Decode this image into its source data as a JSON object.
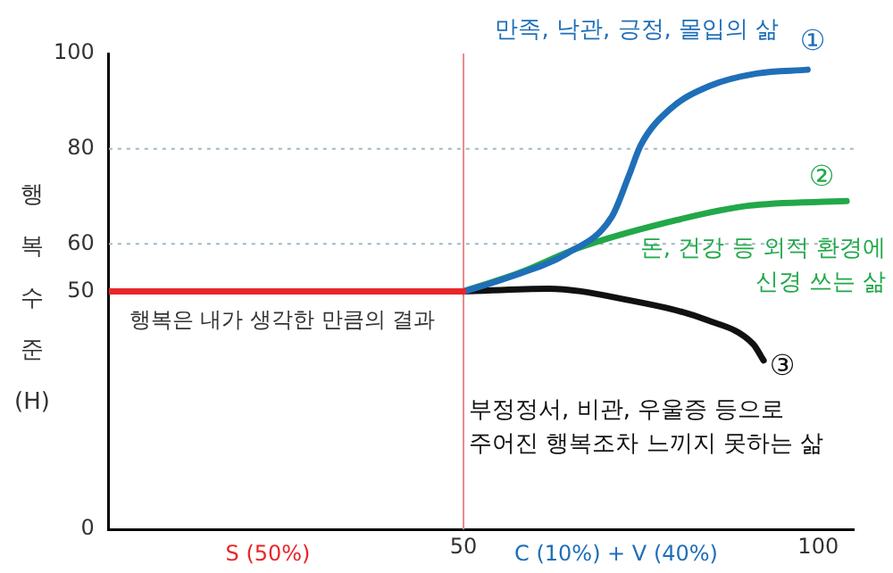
{
  "chart_data": {
    "type": "line",
    "ylabel": "행복수준 (H)",
    "xlim": [
      0,
      105
    ],
    "ylim": [
      0,
      100
    ],
    "xticks": [
      50,
      100
    ],
    "yticks": [
      0,
      50,
      60,
      80,
      100
    ],
    "grid": false,
    "legend": false,
    "marker": "none",
    "line_style": "solid",
    "series": [
      {
        "color": "#e8262a",
        "x": [
          0,
          50
        ],
        "values": [
          50,
          50
        ]
      },
      {
        "name": "만족, 낙관, 긍정, 몰입의 삶",
        "color": "#1f6fb8",
        "x": [
          50,
          56,
          64.6,
          70.9,
          73.3,
          75,
          79.1,
          84.7,
          91.3,
          98.5
        ],
        "values": [
          50,
          52.8,
          58,
          65.7,
          74.3,
          80.8,
          88.3,
          93.2,
          95.8,
          96.6
        ]
      },
      {
        "name": "돈, 건강 등 외적 환경에\n신경 쓰는 삶",
        "color": "#22a84a",
        "x": [
          50,
          58,
          66.3,
          80,
          90,
          104
        ],
        "values": [
          50,
          54,
          59.2,
          65,
          68,
          69
        ]
      },
      {
        "name": "부정정서, 비관, 우울증 등으로\n주어진 행복조차 느끼지 못하는 삶",
        "color": "#111111",
        "x": [
          50,
          62,
          72.2,
          84.3,
          90.8,
          92.3
        ],
        "values": [
          50,
          50.6,
          48.5,
          44,
          39,
          35.5
        ]
      }
    ],
    "ref_lines": [
      {
        "axis": "x",
        "value": 50,
        "color": "#e88a8a",
        "line_style": "solid"
      },
      {
        "axis": "y",
        "value": 80,
        "color": "#9fb8c8",
        "line_style": "dotted"
      },
      {
        "axis": "y",
        "value": 60,
        "color": "#9fb8c8",
        "line_style": "dotted"
      }
    ],
    "annotations": [
      "행복은 내가 생각한 만큼의 결과",
      "①",
      "②",
      "③",
      "S (50%)",
      "C (10%) + V (40%)"
    ]
  }
}
